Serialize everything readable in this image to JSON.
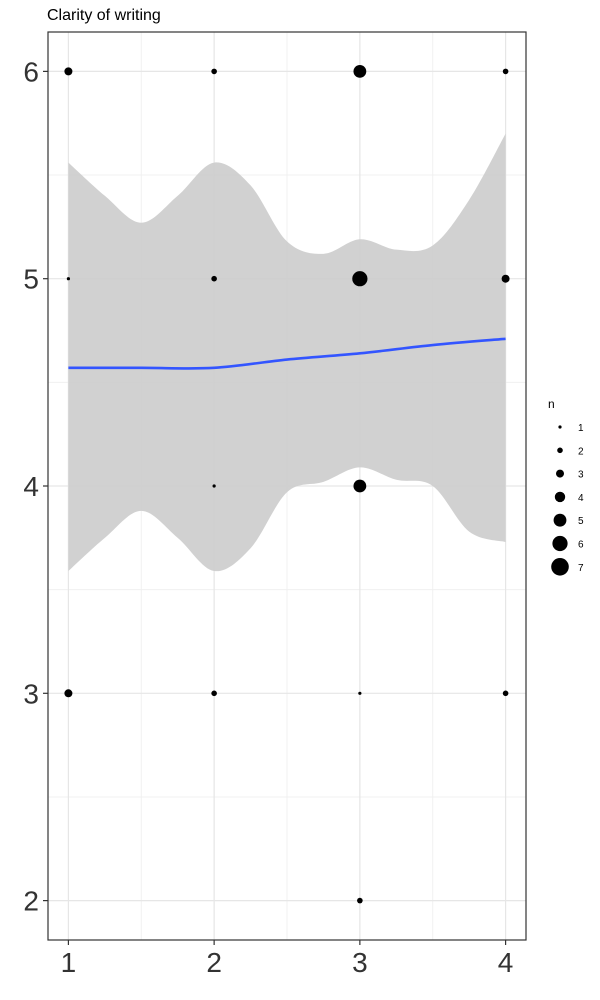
{
  "chart_data": {
    "type": "scatter",
    "title": "Clarity of writing",
    "xlabel": "",
    "ylabel": "",
    "xlim": [
      0.86,
      4.14
    ],
    "ylim": [
      1.81,
      6.19
    ],
    "x_ticks": [
      1,
      2,
      3,
      4
    ],
    "y_ticks": [
      2,
      3,
      4,
      5,
      6
    ],
    "grid": true,
    "points": [
      {
        "x": 1,
        "y": 6,
        "n": 3
      },
      {
        "x": 2,
        "y": 6,
        "n": 2
      },
      {
        "x": 3,
        "y": 6,
        "n": 5
      },
      {
        "x": 4,
        "y": 6,
        "n": 2
      },
      {
        "x": 1,
        "y": 5,
        "n": 1
      },
      {
        "x": 2,
        "y": 5,
        "n": 2
      },
      {
        "x": 3,
        "y": 5,
        "n": 6
      },
      {
        "x": 4,
        "y": 5,
        "n": 3
      },
      {
        "x": 2,
        "y": 4,
        "n": 1
      },
      {
        "x": 3,
        "y": 4,
        "n": 5
      },
      {
        "x": 1,
        "y": 3,
        "n": 3
      },
      {
        "x": 2,
        "y": 3,
        "n": 2
      },
      {
        "x": 3,
        "y": 3,
        "n": 1
      },
      {
        "x": 4,
        "y": 3,
        "n": 2
      },
      {
        "x": 3,
        "y": 2,
        "n": 2
      }
    ],
    "smooth_line": {
      "color": "#3355ff",
      "x": [
        1,
        1.5,
        2,
        2.5,
        3,
        3.5,
        4
      ],
      "y": [
        4.57,
        4.57,
        4.57,
        4.61,
        4.64,
        4.68,
        4.71
      ]
    },
    "confidence_band": {
      "color": "#cccccc",
      "x": [
        1,
        1.25,
        1.5,
        1.75,
        2,
        2.25,
        2.5,
        2.75,
        3,
        3.25,
        3.5,
        3.75,
        4
      ],
      "upper": [
        5.56,
        5.4,
        5.27,
        5.4,
        5.56,
        5.45,
        5.18,
        5.12,
        5.19,
        5.14,
        5.16,
        5.38,
        5.7
      ],
      "lower": [
        3.59,
        3.75,
        3.88,
        3.75,
        3.59,
        3.7,
        3.97,
        4.02,
        4.09,
        4.03,
        4.0,
        3.78,
        3.73
      ]
    },
    "legend": {
      "title": "n",
      "position": "right",
      "entries": [
        "1",
        "2",
        "3",
        "4",
        "5",
        "6",
        "7"
      ]
    }
  }
}
